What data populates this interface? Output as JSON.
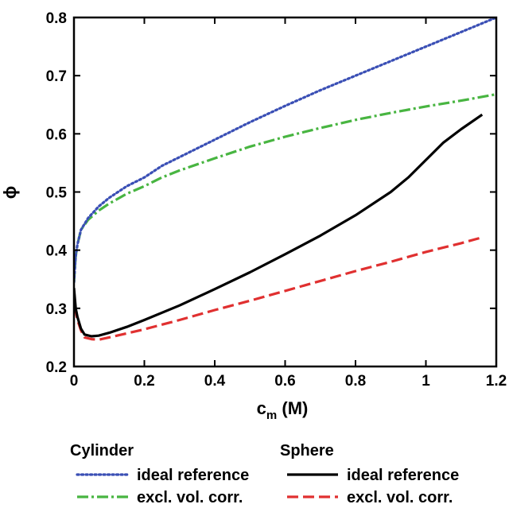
{
  "chart_data": {
    "type": "line",
    "xlabel": "c",
    "xlabel_sub": "m",
    "xlabel_unit": " (M)",
    "ylabel": "ϕ",
    "xlim": [
      0,
      1.2
    ],
    "ylim": [
      0.2,
      0.8
    ],
    "xticks": [
      "0",
      "0.2",
      "0.4",
      "0.6",
      "0.8",
      "1",
      "1.2"
    ],
    "xtick_values": [
      0,
      0.2,
      0.4,
      0.6,
      0.8,
      1.0,
      1.2
    ],
    "yticks": [
      "0.2",
      "0.3",
      "0.4",
      "0.5",
      "0.6",
      "0.7",
      "0.8"
    ],
    "ytick_values": [
      0.2,
      0.3,
      0.4,
      0.5,
      0.6,
      0.7,
      0.8
    ],
    "grid": false,
    "legend_placement": "bottom",
    "legend_groups": [
      {
        "title": "Cylinder",
        "items": [
          0,
          1
        ]
      },
      {
        "title": "Sphere",
        "items": [
          2,
          3
        ]
      }
    ],
    "series": [
      {
        "name": "ideal reference",
        "group": "Cylinder",
        "color": "#3a4fb5",
        "style": "dotted",
        "x": [
          0,
          0.005,
          0.01,
          0.02,
          0.04,
          0.07,
          0.1,
          0.15,
          0.2,
          0.25,
          0.3,
          0.4,
          0.5,
          0.6,
          0.7,
          0.8,
          0.9,
          1.0,
          1.1,
          1.2
        ],
        "y": [
          0.345,
          0.39,
          0.41,
          0.435,
          0.455,
          0.475,
          0.49,
          0.51,
          0.525,
          0.545,
          0.56,
          0.59,
          0.62,
          0.648,
          0.675,
          0.7,
          0.725,
          0.75,
          0.775,
          0.8
        ]
      },
      {
        "name": "excl. vol. corr.",
        "group": "Cylinder",
        "color": "#48b541",
        "style": "dashdot",
        "x": [
          0,
          0.005,
          0.01,
          0.02,
          0.04,
          0.07,
          0.1,
          0.15,
          0.2,
          0.25,
          0.3,
          0.4,
          0.5,
          0.6,
          0.7,
          0.8,
          0.9,
          1.0,
          1.1,
          1.2
        ],
        "y": [
          0.345,
          0.39,
          0.41,
          0.435,
          0.452,
          0.468,
          0.48,
          0.497,
          0.51,
          0.525,
          0.537,
          0.558,
          0.578,
          0.595,
          0.61,
          0.624,
          0.636,
          0.647,
          0.657,
          0.668
        ]
      },
      {
        "name": "ideal reference",
        "group": "Sphere",
        "color": "#000000",
        "style": "solid",
        "x": [
          0,
          0.005,
          0.01,
          0.02,
          0.03,
          0.05,
          0.07,
          0.1,
          0.15,
          0.2,
          0.3,
          0.4,
          0.5,
          0.6,
          0.7,
          0.8,
          0.9,
          0.95,
          1.0,
          1.05,
          1.1,
          1.16
        ],
        "y": [
          0.335,
          0.3,
          0.285,
          0.265,
          0.255,
          0.252,
          0.253,
          0.258,
          0.268,
          0.28,
          0.305,
          0.333,
          0.362,
          0.393,
          0.425,
          0.46,
          0.5,
          0.525,
          0.555,
          0.585,
          0.608,
          0.633
        ]
      },
      {
        "name": "excl. vol. corr.",
        "group": "Sphere",
        "color": "#e03030",
        "style": "dashed",
        "x": [
          0,
          0.005,
          0.01,
          0.02,
          0.03,
          0.05,
          0.07,
          0.1,
          0.15,
          0.2,
          0.3,
          0.4,
          0.5,
          0.6,
          0.7,
          0.8,
          0.9,
          1.0,
          1.1,
          1.16
        ],
        "y": [
          0.33,
          0.295,
          0.28,
          0.262,
          0.25,
          0.247,
          0.246,
          0.25,
          0.257,
          0.264,
          0.28,
          0.297,
          0.313,
          0.33,
          0.347,
          0.364,
          0.38,
          0.397,
          0.412,
          0.422
        ]
      }
    ]
  }
}
